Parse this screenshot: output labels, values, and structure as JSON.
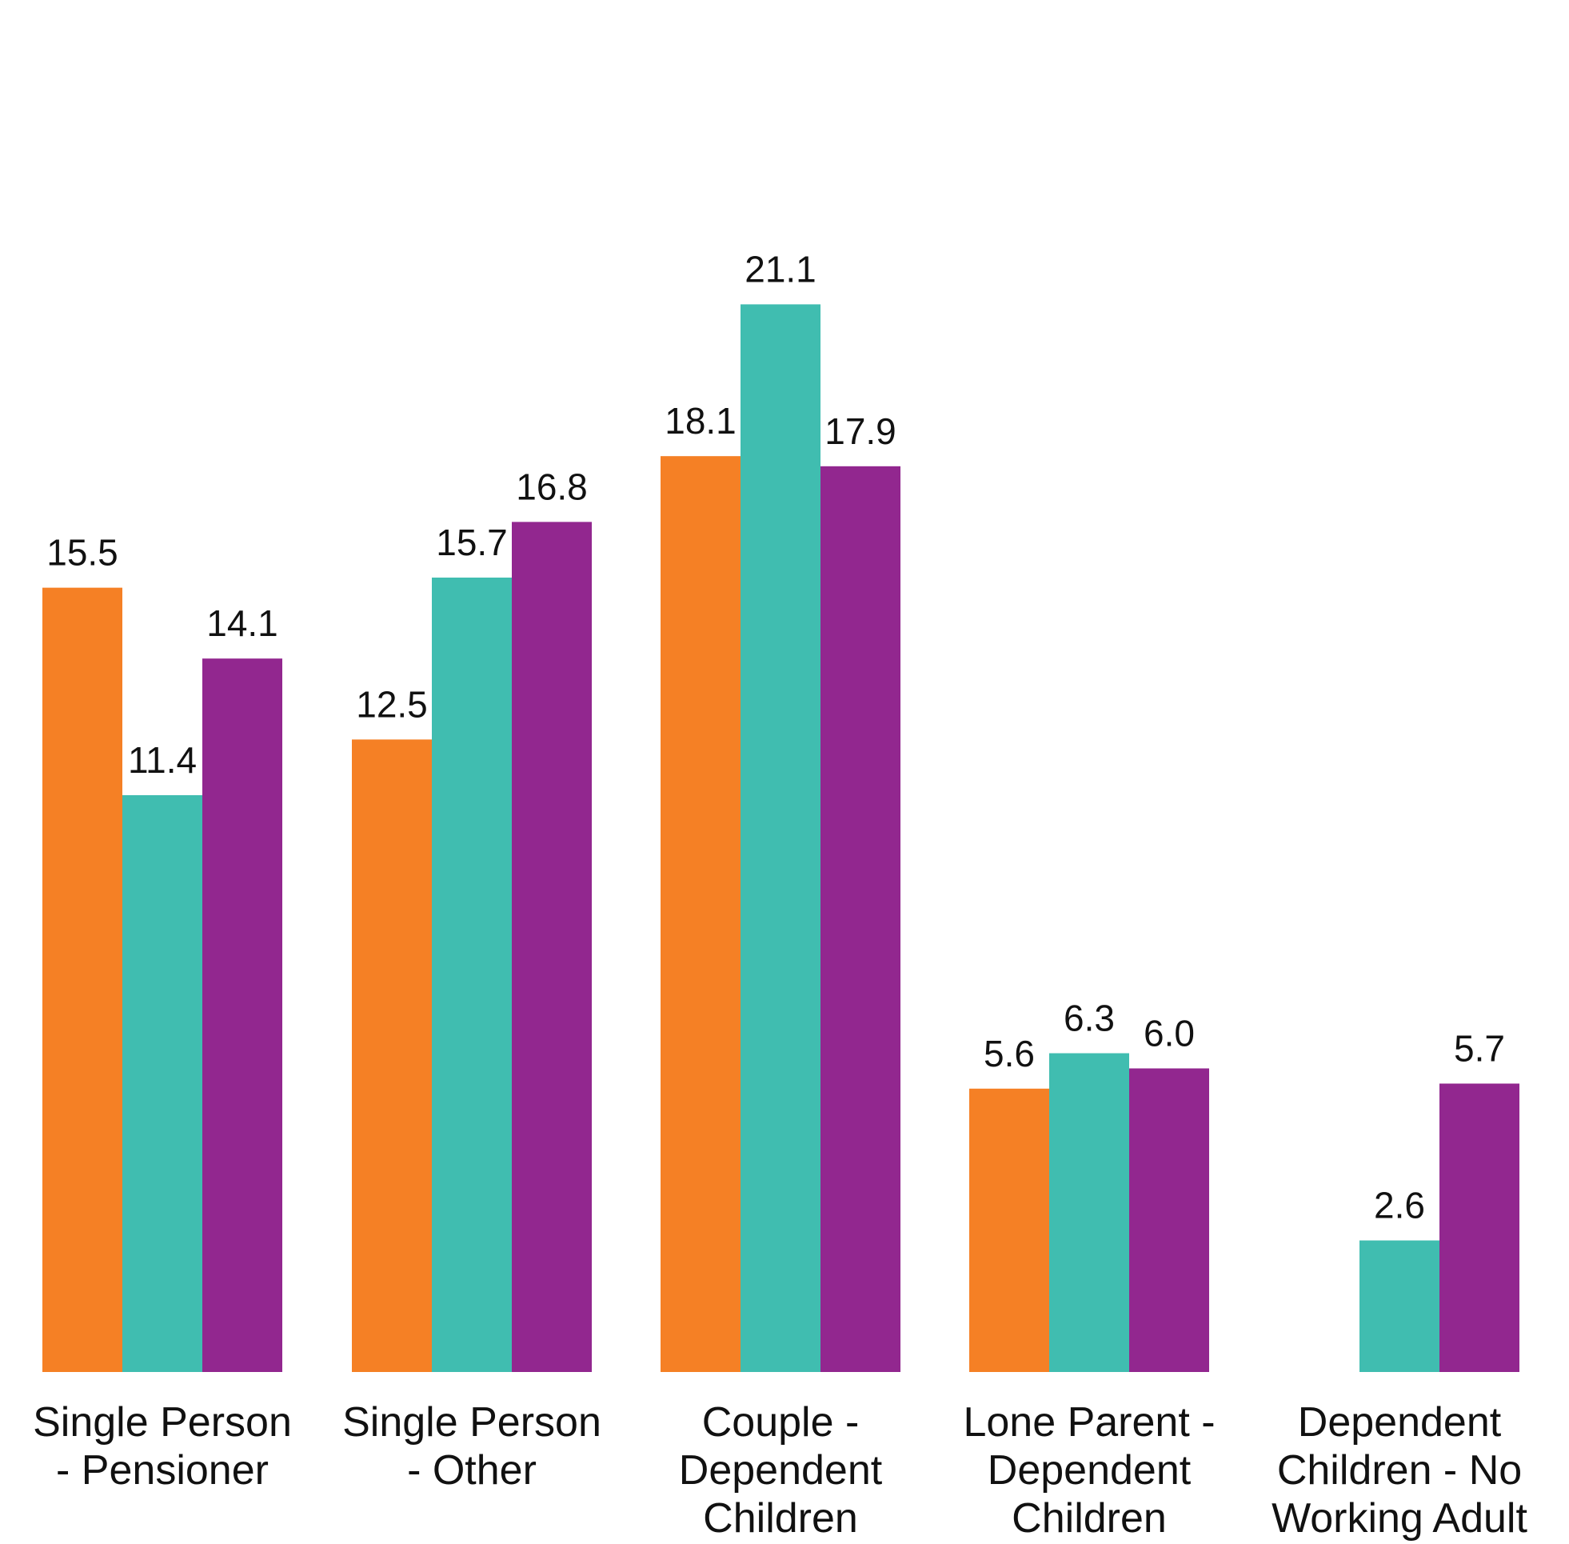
{
  "chart_data": {
    "type": "bar",
    "categories": [
      [
        "Single Person",
        "- Pensioner"
      ],
      [
        "Single Person",
        "- Other"
      ],
      [
        "Couple -",
        "Dependent",
        "Children"
      ],
      [
        "Lone Parent -",
        "Dependent",
        "Children"
      ],
      [
        "Dependent",
        "Children - No",
        "Working Adult"
      ]
    ],
    "series": [
      {
        "color": "#f58025",
        "values": [
          15.5,
          12.5,
          18.1,
          5.6,
          null
        ]
      },
      {
        "color": "#40bdb0",
        "values": [
          11.4,
          15.7,
          21.1,
          6.3,
          2.6
        ]
      },
      {
        "color": "#92278f",
        "values": [
          14.1,
          16.8,
          17.9,
          6.0,
          5.7
        ]
      }
    ],
    "value_labels": [
      [
        "15.5",
        "12.5",
        "18.1",
        "5.6",
        null
      ],
      [
        "11.4",
        "15.7",
        "21.1",
        "6.3",
        "2.6"
      ],
      [
        "14.1",
        "16.8",
        "17.9",
        "6.0",
        "5.7"
      ]
    ],
    "ylim": [
      0,
      22
    ],
    "grid": false,
    "legend": "none",
    "axes_visible": false,
    "title": "",
    "xlabel": "",
    "ylabel": ""
  }
}
